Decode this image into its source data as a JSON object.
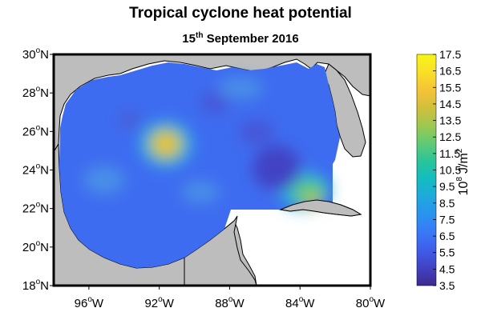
{
  "title": "Tropical cyclone heat potential",
  "subtitle": {
    "day": "15",
    "day_suffix": "th",
    "rest": "September 2016"
  },
  "map": {
    "lat_ticks": [
      {
        "value": 30,
        "label": "30",
        "hemisphere": "N"
      },
      {
        "value": 28,
        "label": "28",
        "hemisphere": "N"
      },
      {
        "value": 26,
        "label": "26",
        "hemisphere": "N"
      },
      {
        "value": 24,
        "label": "24",
        "hemisphere": "N"
      },
      {
        "value": 22,
        "label": "22",
        "hemisphere": "N"
      },
      {
        "value": 20,
        "label": "20",
        "hemisphere": "N"
      },
      {
        "value": 18,
        "label": "18",
        "hemisphere": "N"
      }
    ],
    "lon_ticks": [
      {
        "value": -96,
        "label": "96",
        "hemisphere": "W"
      },
      {
        "value": -92,
        "label": "92",
        "hemisphere": "W"
      },
      {
        "value": -88,
        "label": "88",
        "hemisphere": "W"
      },
      {
        "value": -84,
        "label": "84",
        "hemisphere": "W"
      },
      {
        "value": -80,
        "label": "80",
        "hemisphere": "W"
      }
    ],
    "degree_symbol": "o",
    "lon_range": [
      -98,
      -80
    ],
    "lat_range": [
      18,
      30
    ],
    "land_color": "#bdbdbd",
    "ocean_base_color": "#3d6ef0",
    "features": [
      {
        "name": "warm eddy",
        "lon": -91.8,
        "lat": 25.5,
        "value": 13.5
      },
      {
        "name": "loop current / Cuba region",
        "lon": -83.0,
        "lat": 23.0,
        "value": 12.5
      },
      {
        "name": "cold eddy",
        "lon": -86.3,
        "lat": 24.3,
        "value": 4.0
      },
      {
        "name": "cold eddy",
        "lon": -87.2,
        "lat": 25.6,
        "value": 4.5
      },
      {
        "name": "cold eddy",
        "lon": -89.7,
        "lat": 27.8,
        "value": 4.5
      }
    ]
  },
  "colorbar": {
    "ticks": [
      "3.5",
      "4.5",
      "5.5",
      "6.5",
      "7.5",
      "8.5",
      "9.5",
      "10.5",
      "11.5",
      "12.5",
      "13.5",
      "14.5",
      "15.5",
      "16.5",
      "17.5"
    ],
    "min": 3.5,
    "max": 17.5,
    "label_base": "10",
    "label_exp1": "8",
    "label_unit": "J/m",
    "label_exp2": "2",
    "colors": [
      "#3e2a8c",
      "#4142c4",
      "#3f5de9",
      "#3979f7",
      "#2a93ef",
      "#1fa9dc",
      "#14bcc0",
      "#28c59a",
      "#60ca75",
      "#9ec84f",
      "#d1bf3b",
      "#f5c338",
      "#f9df27",
      "#f8f517"
    ]
  }
}
